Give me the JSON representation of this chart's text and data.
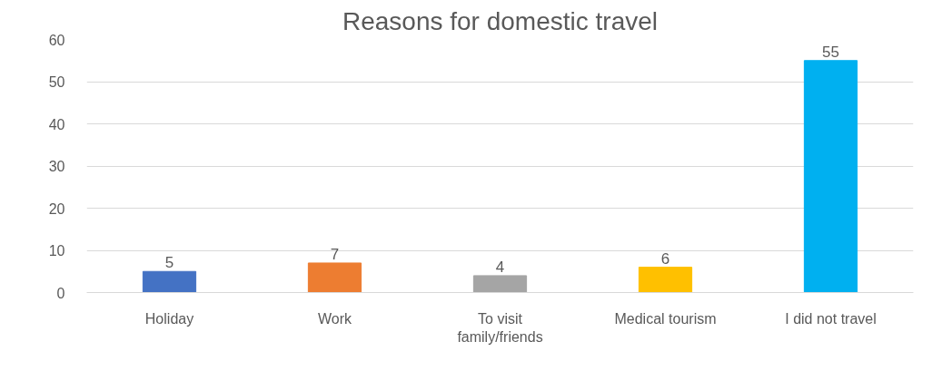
{
  "chart_data": {
    "type": "bar",
    "title": "Reasons for domestic travel",
    "categories": [
      "Holiday",
      "Work",
      "To visit family/friends",
      "Medical tourism",
      "I did not travel"
    ],
    "values": [
      5,
      7,
      4,
      6,
      55
    ],
    "colors": [
      "#4472c4",
      "#ed7d31",
      "#a5a5a5",
      "#ffc000",
      "#00b0f0"
    ],
    "ylim": [
      0,
      60
    ],
    "yticks": [
      0,
      10,
      20,
      30,
      40,
      50,
      60
    ],
    "grid": "y",
    "data_labels": true
  }
}
